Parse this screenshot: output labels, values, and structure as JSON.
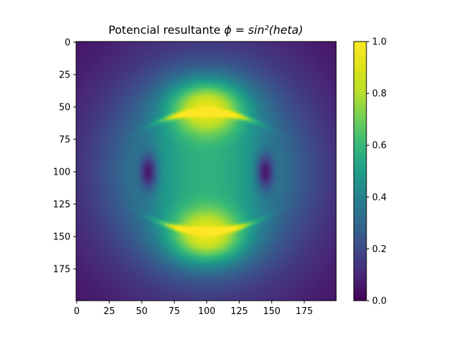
{
  "chart_data": {
    "type": "heatmap",
    "title_prefix": "Potencial resultante ",
    "title_math": "ϕ = sin²(heta)",
    "title_text": "Potencial resultante ϕ = sin²(heta)",
    "xlabel": "",
    "ylabel": "",
    "shape": [
      200,
      200
    ],
    "x_range": [
      0,
      199
    ],
    "y_range": [
      0,
      199
    ],
    "y_inverted": true,
    "x_ticks": [
      0,
      25,
      50,
      75,
      100,
      125,
      150,
      175
    ],
    "y_ticks": [
      0,
      25,
      50,
      75,
      100,
      125,
      150,
      175
    ],
    "x_tick_labels": [
      "0",
      "25",
      "50",
      "75",
      "100",
      "125",
      "150",
      "175"
    ],
    "y_tick_labels": [
      "0",
      "25",
      "50",
      "75",
      "100",
      "125",
      "150",
      "175"
    ],
    "colormap": "viridis",
    "value_range": [
      0.0,
      1.0
    ],
    "colorbar_ticks": [
      0.0,
      0.2,
      0.4,
      0.6,
      0.8,
      1.0
    ],
    "colorbar_tick_labels": [
      "0.0",
      "0.2",
      "0.4",
      "0.6",
      "0.8",
      "1.0"
    ],
    "features": {
      "bright_arcs": [
        {
          "center_x": 100,
          "center_y": 54,
          "peak_value": 1.0
        },
        {
          "center_x": 100,
          "center_y": 146,
          "peak_value": 1.0
        }
      ],
      "dark_spots": [
        {
          "center_x": 55,
          "center_y": 100,
          "value": 0.0
        },
        {
          "center_x": 145,
          "center_y": 100,
          "value": 0.0
        }
      ],
      "center_value": 0.4,
      "corner_value": 0.05
    },
    "grid": false,
    "legend": "none"
  }
}
